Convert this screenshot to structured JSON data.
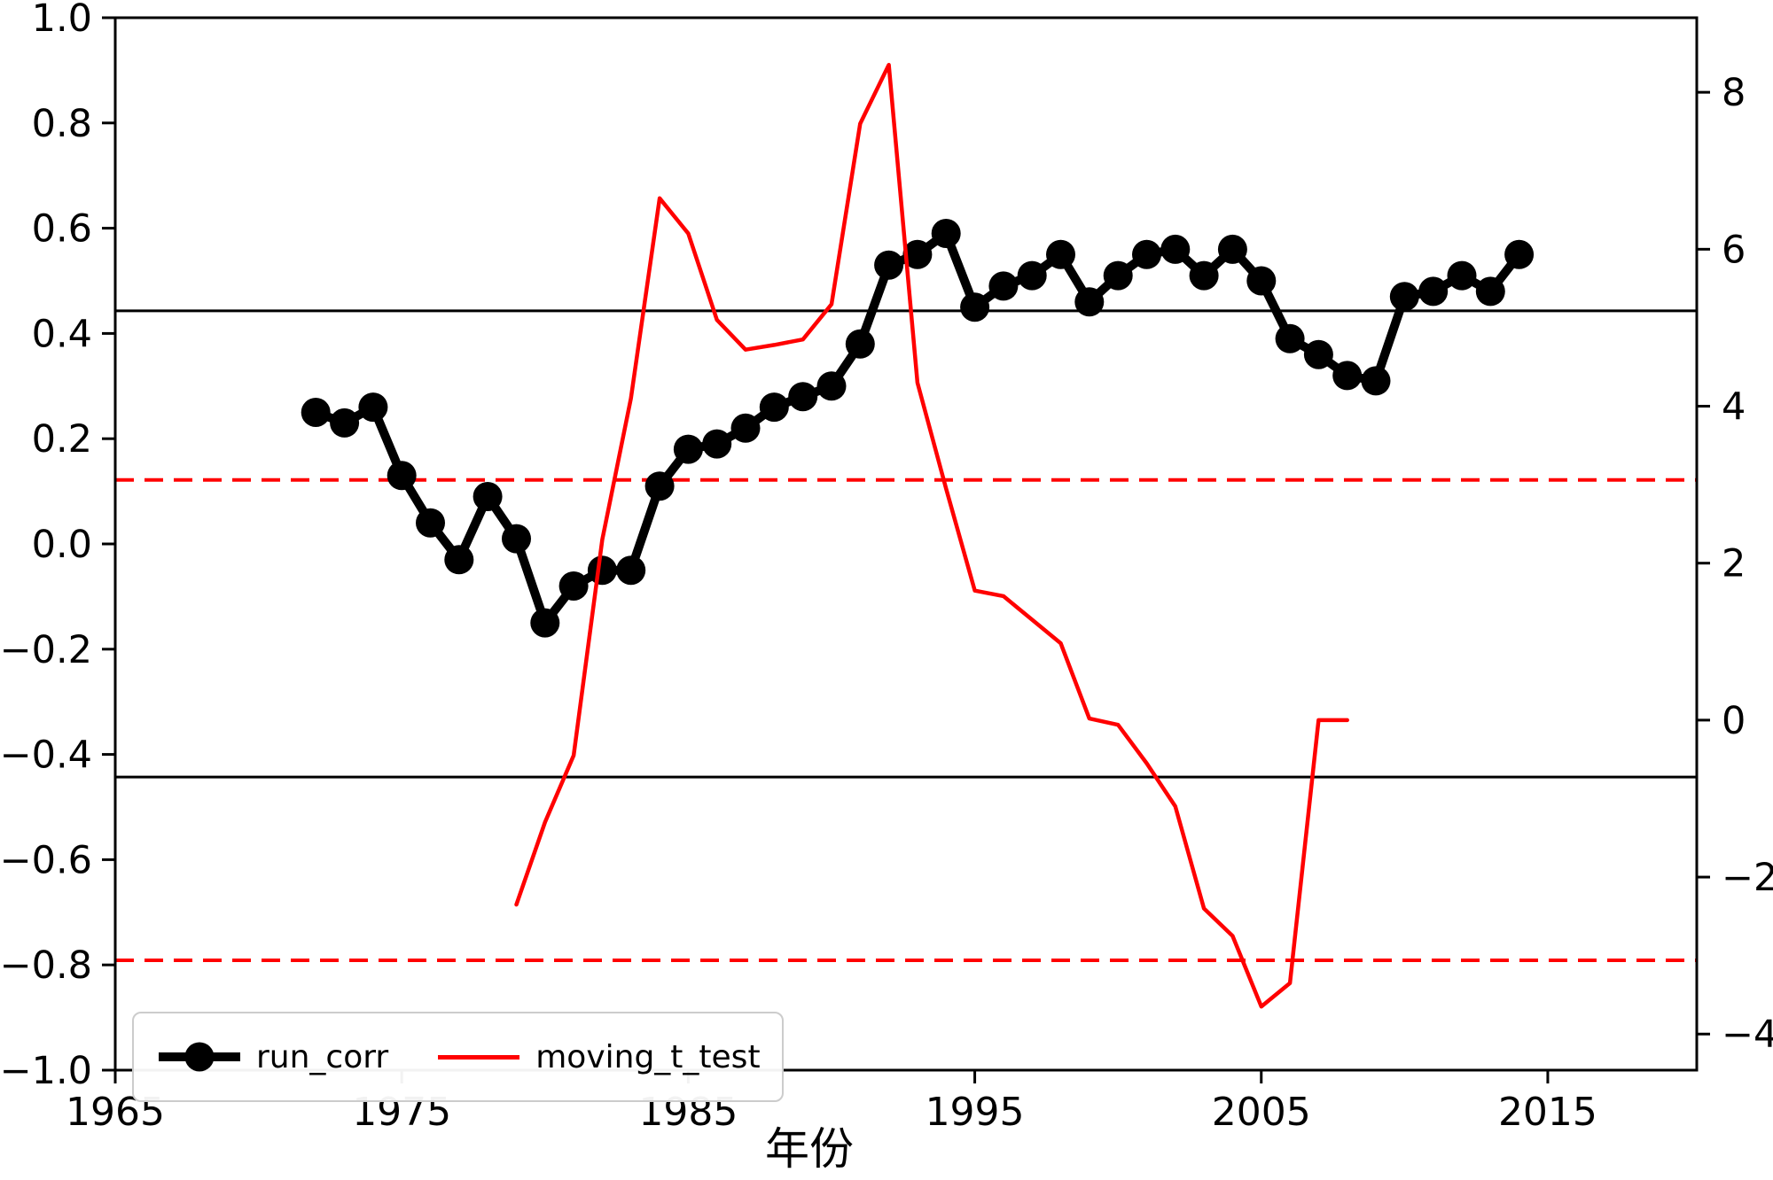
{
  "figure": {
    "background": "#ffffff"
  },
  "chart_data": {
    "type": "line",
    "title": "",
    "xlabel": "年份",
    "grid": false,
    "legend_position": "lower-left",
    "xlim": [
      1965,
      2020.2
    ],
    "x_ticks": [
      {
        "value": 1965,
        "label": "1965"
      },
      {
        "value": 1975,
        "label": "1975"
      },
      {
        "value": 1985,
        "label": "1985"
      },
      {
        "value": 1995,
        "label": "1995"
      },
      {
        "value": 2005,
        "label": "2005"
      },
      {
        "value": 2015,
        "label": "2015"
      }
    ],
    "left_axis": {
      "lim": [
        -1.0,
        1.0
      ],
      "ticks": [
        {
          "value": 1.0,
          "label": "1.0"
        },
        {
          "value": 0.8,
          "label": "0.8"
        },
        {
          "value": 0.6,
          "label": "0.6"
        },
        {
          "value": 0.4,
          "label": "0.4"
        },
        {
          "value": 0.2,
          "label": "0.2"
        },
        {
          "value": 0.0,
          "label": "0.0"
        },
        {
          "value": -0.2,
          "label": "−0.2"
        },
        {
          "value": -0.4,
          "label": "−0.4"
        },
        {
          "value": -0.6,
          "label": "−0.6"
        },
        {
          "value": -0.8,
          "label": "−0.8"
        },
        {
          "value": -1.0,
          "label": "−1.0"
        }
      ]
    },
    "right_axis": {
      "lim": [
        -4.46,
        8.95
      ],
      "ticks": [
        {
          "value": 8,
          "label": "8"
        },
        {
          "value": 6,
          "label": "6"
        },
        {
          "value": 4,
          "label": "4"
        },
        {
          "value": 2,
          "label": "2"
        },
        {
          "value": 0,
          "label": "0"
        },
        {
          "value": -2,
          "label": "−2"
        },
        {
          "value": -4,
          "label": "−4"
        }
      ]
    },
    "reference_lines": [
      {
        "axis": "left",
        "value": 0.443,
        "style": "solid",
        "color": "#000000"
      },
      {
        "axis": "left",
        "value": -0.443,
        "style": "solid",
        "color": "#000000"
      },
      {
        "axis": "right",
        "value": 3.06,
        "style": "dashed",
        "color": "#ff0000"
      },
      {
        "axis": "right",
        "value": -3.06,
        "style": "dashed",
        "color": "#ff0000"
      }
    ],
    "series": [
      {
        "name": "run_corr",
        "axis": "left",
        "color": "#000000",
        "marker": "circle",
        "line_width": 10,
        "x": [
          1972,
          1973,
          1974,
          1975,
          1976,
          1977,
          1978,
          1979,
          1980,
          1981,
          1982,
          1983,
          1984,
          1985,
          1986,
          1987,
          1988,
          1989,
          1990,
          1991,
          1992,
          1993,
          1994,
          1995,
          1996,
          1997,
          1998,
          1999,
          2000,
          2001,
          2002,
          2003,
          2004,
          2005,
          2006,
          2007,
          2008,
          2009,
          2010,
          2011,
          2012,
          2013,
          2014
        ],
        "values": [
          0.25,
          0.23,
          0.26,
          0.13,
          0.04,
          -0.03,
          0.09,
          0.01,
          -0.15,
          -0.08,
          -0.05,
          -0.05,
          0.11,
          0.18,
          0.19,
          0.22,
          0.26,
          0.28,
          0.3,
          0.38,
          0.53,
          0.55,
          0.59,
          0.45,
          0.49,
          0.51,
          0.55,
          0.46,
          0.51,
          0.55,
          0.56,
          0.51,
          0.56,
          0.5,
          0.39,
          0.36,
          0.32,
          0.31,
          0.47,
          0.48,
          0.51,
          0.48,
          0.55
        ]
      },
      {
        "name": "moving_t_test",
        "axis": "right",
        "color": "#ff0000",
        "marker": "none",
        "line_width": 4.5,
        "x": [
          1979,
          1980,
          1981,
          1982,
          1983,
          1984,
          1985,
          1986,
          1987,
          1988,
          1989,
          1990,
          1991,
          1992,
          1993,
          1994,
          1995,
          1996,
          1997,
          1998,
          1999,
          2000,
          2001,
          2002,
          2003,
          2004,
          2005,
          2006,
          2007,
          2008
        ],
        "values": [
          -2.35,
          -1.3,
          -0.45,
          2.3,
          4.1,
          6.65,
          6.2,
          5.1,
          4.72,
          4.78,
          4.85,
          5.3,
          7.6,
          8.35,
          4.3,
          2.95,
          1.65,
          1.58,
          1.28,
          0.98,
          0.02,
          -0.06,
          -0.55,
          -1.1,
          -2.4,
          -2.75,
          -3.65,
          -3.35,
          0.0,
          0.0
        ]
      }
    ],
    "legend": {
      "items": [
        "run_corr",
        "moving_t_test"
      ]
    }
  }
}
